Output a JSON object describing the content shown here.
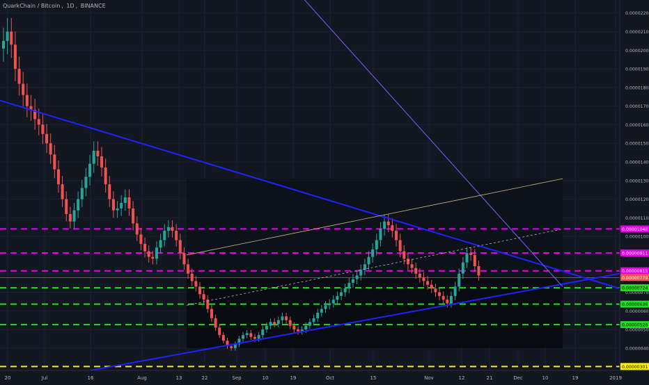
{
  "header": {
    "symbol": "QuarkChain / Bitcoin",
    "interval": "1D",
    "exchange": "BINANCE",
    "sep1": ", ",
    "sep2": ", "
  },
  "colors": {
    "background": "#131722",
    "grid": "#1c2030",
    "up": "#26a69a",
    "down": "#ef5350",
    "trend_blue": "#2121ff",
    "support_line": "#6a6aff",
    "magenta_level": "#e600e6",
    "green_level": "#22dd22",
    "yellow_level": "#ffee00",
    "channel_upper": "#c8b98c",
    "axis_text": "#b2b5be"
  },
  "chart_data": {
    "type": "candlestick",
    "title": "",
    "y_axis_side": "right",
    "ylim": [
      2.8e-06,
      2.24e-05
    ],
    "y_ticks": [
      "0.00000400",
      "0.00000500",
      "0.00000600",
      "0.00000700",
      "0.00000800",
      "0.00000900",
      "0.00001000",
      "0.00001100",
      "0.00001200",
      "0.00001300",
      "0.00001400",
      "0.00001500",
      "0.00001600",
      "0.00001700",
      "0.00001800",
      "0.00001900",
      "0.00002000",
      "0.00002100",
      "0.00002200"
    ],
    "x_ticks": [
      "20",
      "Jul",
      "16",
      "Aug",
      "13",
      "22",
      "Sep",
      "10",
      "19",
      "Oct",
      "15",
      "Nov",
      "12",
      "21",
      "Dec",
      "10",
      "19",
      "2019"
    ],
    "horizontal_levels": [
      {
        "label": "0.00001040",
        "value": 1.04e-05,
        "color": "magenta"
      },
      {
        "label": "0.00000911",
        "value": 9.11e-06,
        "color": "magenta"
      },
      {
        "label": "0.00000815",
        "value": 8.15e-06,
        "color": "magenta"
      },
      {
        "label": "0.00000779",
        "value": 7.79e-06,
        "color": "gray-red"
      },
      {
        "label": "0.00000724",
        "value": 7.24e-06,
        "color": "green"
      },
      {
        "label": "0.00000636",
        "value": 6.36e-06,
        "color": "green"
      },
      {
        "label": "0.00000526",
        "value": 5.26e-06,
        "color": "green"
      },
      {
        "label": "0.00000301",
        "value": 3.01e-06,
        "color": "yellow"
      }
    ],
    "candles_close": [
      2.05e-05,
      2.1e-05,
      2.03e-05,
      1.9e-05,
      1.82e-05,
      1.76e-05,
      1.7e-05,
      1.68e-05,
      1.63e-05,
      1.6e-05,
      1.55e-05,
      1.5e-05,
      1.44e-05,
      1.36e-05,
      1.28e-05,
      1.2e-05,
      1.12e-05,
      1.08e-05,
      1.14e-05,
      1.2e-05,
      1.26e-05,
      1.32e-05,
      1.39e-05,
      1.46e-05,
      1.43e-05,
      1.37e-05,
      1.28e-05,
      1.2e-05,
      1.14e-05,
      1.15e-05,
      1.18e-05,
      1.21e-05,
      1.15e-05,
      1.07e-05,
      1.01e-05,
      9.6e-06,
      9.2e-06,
      8.9e-06,
      8.8e-06,
      9.4e-06,
      9.8e-06,
      1.03e-05,
      1.05e-05,
      1.03e-05,
      9.8e-06,
      9.1e-06,
      8.5e-06,
      8e-06,
      7.6e-06,
      7.3e-06,
      6.9e-06,
      6.6e-06,
      6.1e-06,
      5.6e-06,
      5.1e-06,
      4.7e-06,
      4.4e-06,
      4.1e-06,
      4e-06,
      4.2e-06,
      4.5e-06,
      4.7e-06,
      4.8e-06,
      4.6e-06,
      4.5e-06,
      4.7e-06,
      5e-06,
      5.2e-06,
      5.4e-06,
      5.3e-06,
      5.5e-06,
      5.7e-06,
      5.5e-06,
      5.2e-06,
      5e-06,
      4.9e-06,
      5e-06,
      5.2e-06,
      5.4e-06,
      5.6e-06,
      5.9e-06,
      6.1e-06,
      6.3e-06,
      6.4e-06,
      6.6e-06,
      6.8e-06,
      7e-06,
      7.2e-06,
      7.5e-06,
      7.7e-06,
      7.9e-06,
      8.2e-06,
      8.5e-06,
      8.9e-06,
      9.3e-06,
      9.8e-06,
      1.04e-05,
      1.08e-05,
      1.06e-05,
      1.03e-05,
      9.8e-06,
      9.2e-06,
      8.8e-06,
      8.5e-06,
      8.3e-06,
      8e-06,
      7.8e-06,
      7.6e-06,
      7.4e-06,
      7.2e-06,
      7e-06,
      6.8e-06,
      6.6e-06,
      6.4e-06,
      6.8e-06,
      7.3e-06,
      8e-06,
      8.6e-06,
      9.1e-06,
      9e-06,
      8.4e-06,
      7.9e-06
    ]
  }
}
